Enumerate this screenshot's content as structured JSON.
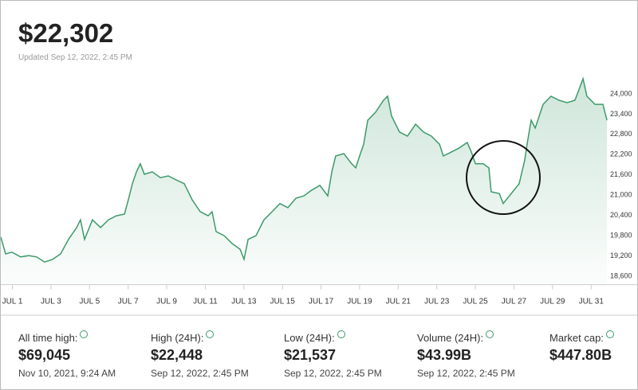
{
  "header": {
    "price": "$22,302",
    "updated": "Updated Sep 12, 2022, 2:45 PM"
  },
  "chart_data": {
    "type": "area-line",
    "color": "#3d9a6a",
    "grid": false,
    "x": [
      0.4,
      0.65,
      0.98,
      1.43,
      1.85,
      2.26,
      2.67,
      3.09,
      3.5,
      3.91,
      4.33,
      4.53,
      4.74,
      5.15,
      5.57,
      5.98,
      6.39,
      6.81,
      7.01,
      7.22,
      7.43,
      7.63,
      7.84,
      8.25,
      8.67,
      9.08,
      9.49,
      9.91,
      10.32,
      10.74,
      11.15,
      11.35,
      11.56,
      11.98,
      12.39,
      12.8,
      13.01,
      13.22,
      13.63,
      14.04,
      14.46,
      14.87,
      15.28,
      15.7,
      16.11,
      16.52,
      16.94,
      17.35,
      17.56,
      17.76,
      18.18,
      18.59,
      18.8,
      19.0,
      19.21,
      19.42,
      19.83,
      20.24,
      20.45,
      20.66,
      21.07,
      21.48,
      21.9,
      22.31,
      22.72,
      23.14,
      23.34,
      23.76,
      24.17,
      24.58,
      24.79,
      25.0,
      25.41,
      25.7,
      25.82,
      26.24,
      26.44,
      26.86,
      27.27,
      27.56,
      27.68,
      27.89,
      28.1,
      28.51,
      28.92,
      29.34,
      29.75,
      30.16,
      30.58,
      30.78,
      31.2,
      31.61,
      31.82
    ],
    "values": [
      19760,
      19260,
      19310,
      19170,
      19210,
      19170,
      19020,
      19100,
      19260,
      19690,
      20040,
      20270,
      19690,
      20270,
      20040,
      20270,
      20390,
      20440,
      20860,
      21340,
      21690,
      21930,
      21620,
      21690,
      21520,
      21570,
      21450,
      21340,
      20860,
      20510,
      20390,
      20510,
      19920,
      19800,
      19570,
      19400,
      19100,
      19690,
      19800,
      20270,
      20510,
      20750,
      20630,
      20910,
      20980,
      21150,
      21290,
      20980,
      21690,
      22160,
      22230,
      21930,
      21810,
      22160,
      22510,
      23220,
      23460,
      23810,
      23930,
      23340,
      22870,
      22750,
      23100,
      22870,
      22750,
      22510,
      22160,
      22280,
      22400,
      22560,
      22280,
      21930,
      21930,
      21810,
      21100,
      21050,
      20750,
      21050,
      21340,
      22040,
      22510,
      23220,
      22990,
      23690,
      23930,
      23810,
      23740,
      23810,
      24450,
      23930,
      23690,
      23690,
      23220
    ],
    "xlim": [
      0.4,
      31.9
    ],
    "ylim": [
      18350,
      24900
    ],
    "xticks": [
      {
        "value": 1,
        "label": "JUL 1"
      },
      {
        "value": 3,
        "label": "JUL 3"
      },
      {
        "value": 5,
        "label": "JUL 5"
      },
      {
        "value": 7,
        "label": "JUL 7"
      },
      {
        "value": 9,
        "label": "JUL 9"
      },
      {
        "value": 11,
        "label": "JUL 11"
      },
      {
        "value": 13,
        "label": "JUL 13"
      },
      {
        "value": 15,
        "label": "JUL 15"
      },
      {
        "value": 17,
        "label": "JUL 17"
      },
      {
        "value": 19,
        "label": "JUL 19"
      },
      {
        "value": 21,
        "label": "JUL 21"
      },
      {
        "value": 23,
        "label": "JUL 23"
      },
      {
        "value": 25,
        "label": "JUL 25"
      },
      {
        "value": 27,
        "label": "JUL 27"
      },
      {
        "value": 29,
        "label": "JUL 29"
      },
      {
        "value": 31,
        "label": "JUL 31"
      }
    ],
    "yticks": [
      {
        "value": 18600,
        "label": "18,600"
      },
      {
        "value": 19200,
        "label": "19,200"
      },
      {
        "value": 19800,
        "label": "19,800"
      },
      {
        "value": 20400,
        "label": "20,400"
      },
      {
        "value": 21000,
        "label": "21,000"
      },
      {
        "value": 21600,
        "label": "21,600"
      },
      {
        "value": 22200,
        "label": "22,200"
      },
      {
        "value": 22800,
        "label": "22,800"
      },
      {
        "value": 23400,
        "label": "23,400"
      },
      {
        "value": 24000,
        "label": "24,000"
      }
    ]
  },
  "stats": [
    {
      "label": "All time high:",
      "value": "$69,045",
      "date": "Nov 10, 2021, 9:24 AM"
    },
    {
      "label": "High (24H):",
      "value": "$22,448",
      "date": "Sep 12, 2022, 2:45 PM"
    },
    {
      "label": "Low (24H):",
      "value": "$21,537",
      "date": "Sep 12, 2022, 2:45 PM"
    },
    {
      "label": "Volume (24H):",
      "value": "$43.99B",
      "date": "Sep 12, 2022, 2:45 PM"
    },
    {
      "label": "Market cap:",
      "value": "$447.80B"
    }
  ]
}
